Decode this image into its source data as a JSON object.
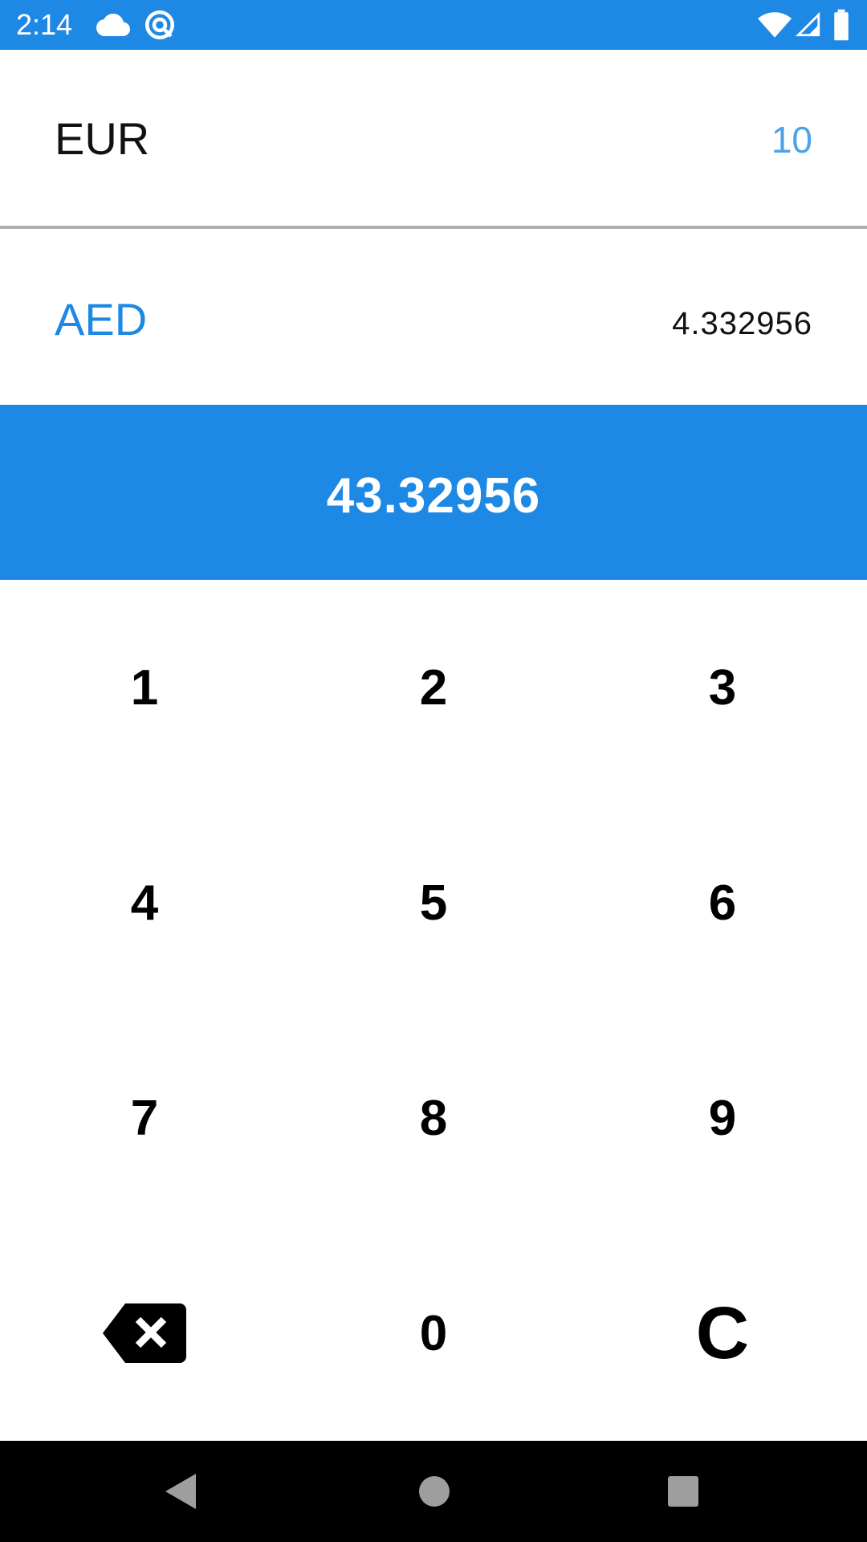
{
  "status_bar": {
    "time": "2:14",
    "icons": [
      "cloud-icon",
      "sync-icon",
      "wifi-icon",
      "signal-icon",
      "battery-icon"
    ],
    "color": "#1e88e5"
  },
  "from_currency": {
    "code": "EUR",
    "value": "10"
  },
  "to_currency": {
    "code": "AED",
    "rate": "4.332956"
  },
  "result": {
    "value": "43.32956"
  },
  "keypad": {
    "keys": [
      "1",
      "2",
      "3",
      "4",
      "5",
      "6",
      "7",
      "8",
      "9"
    ],
    "backspace_icon": "backspace-icon",
    "zero": "0",
    "clear": "C"
  },
  "nav_bar": {
    "icons": [
      "back-icon",
      "home-icon",
      "recents-icon"
    ]
  },
  "colors": {
    "accent": "#1e88e5",
    "value_light": "#4aa3ea",
    "divider": "#adadad"
  }
}
